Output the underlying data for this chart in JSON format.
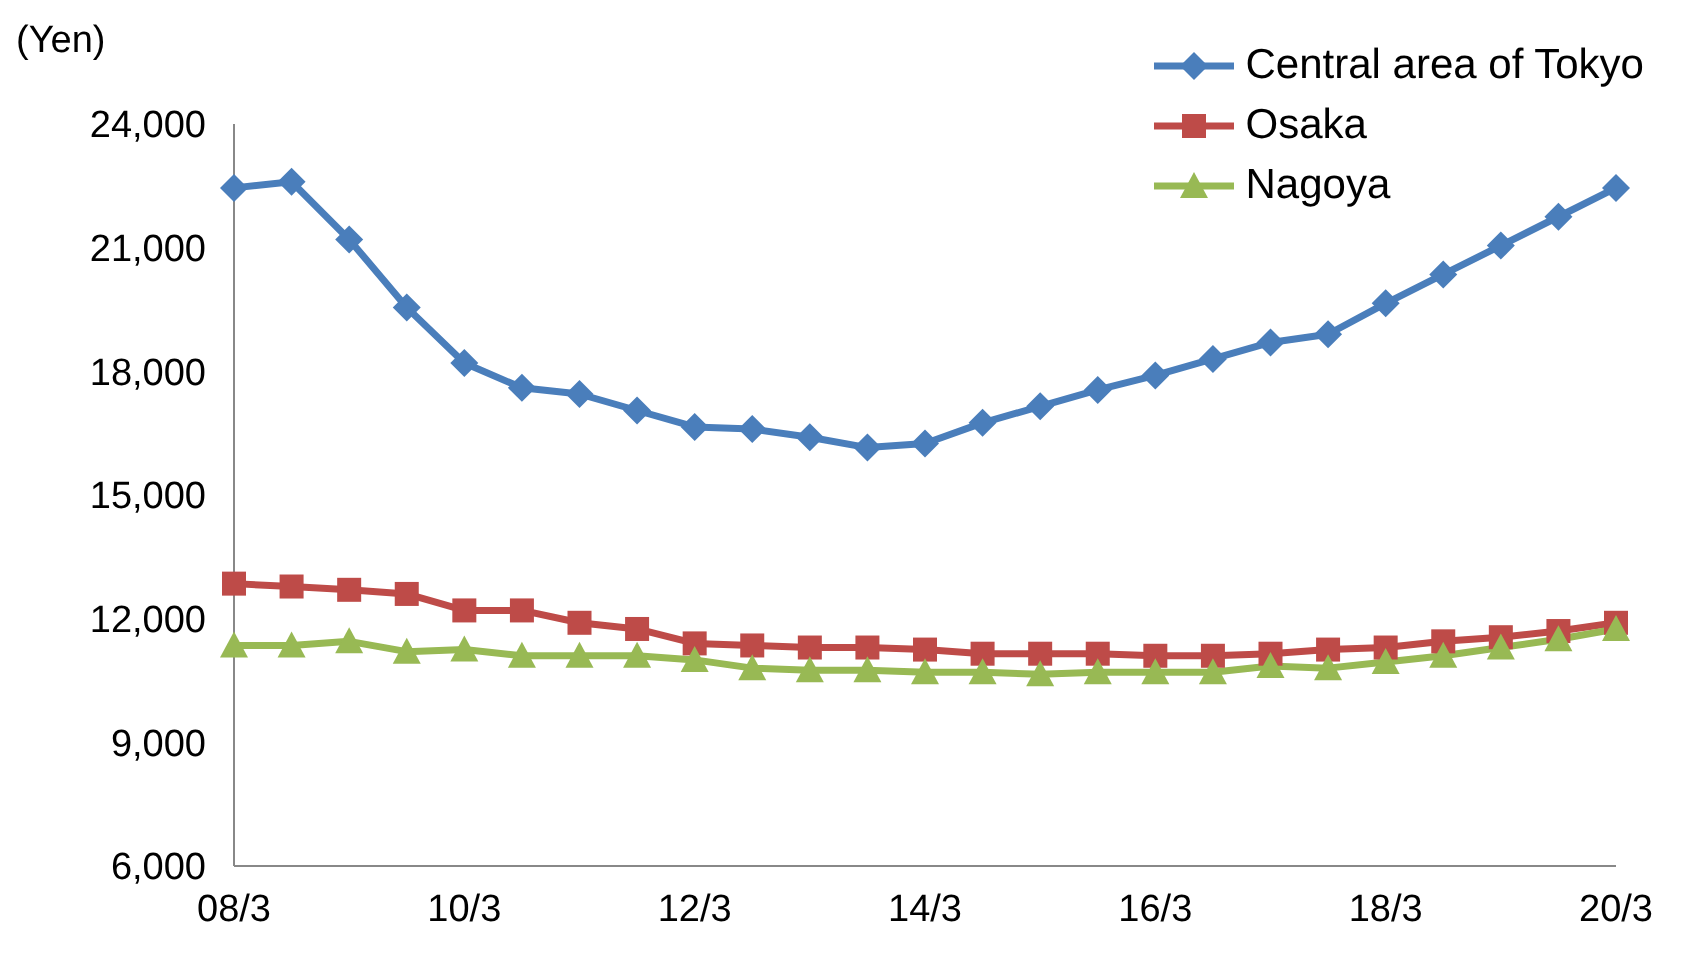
{
  "chart_data": {
    "type": "line",
    "ylabel": "(Yen)",
    "categories": [
      "08/3",
      null,
      null,
      null,
      "10/3",
      null,
      null,
      null,
      "12/3",
      null,
      null,
      null,
      "14/3",
      null,
      null,
      null,
      "16/3",
      null,
      null,
      null,
      "18/3",
      null,
      null,
      null,
      "20/3"
    ],
    "series": [
      {
        "name": "Central area of Tokyo",
        "color": "#4a7ebb",
        "marker": "diamond",
        "values": [
          22450,
          22600,
          21200,
          19550,
          18200,
          17600,
          17450,
          17050,
          16650,
          16600,
          16400,
          16150,
          16250,
          16750,
          17150,
          17550,
          17900,
          18300,
          18700,
          18900,
          19650,
          20350,
          21050,
          21750,
          22450
        ]
      },
      {
        "name": "Osaka",
        "color": "#be4b48",
        "marker": "square",
        "values": [
          12850,
          12780,
          12700,
          12600,
          12200,
          12200,
          11900,
          11750,
          11400,
          11350,
          11300,
          11300,
          11250,
          11150,
          11150,
          11150,
          11100,
          11100,
          11150,
          11250,
          11300,
          11450,
          11550,
          11700,
          11900
        ]
      },
      {
        "name": "Nagoya",
        "color": "#98b954",
        "marker": "triangle",
        "values": [
          11350,
          11350,
          11450,
          11200,
          11250,
          11100,
          11100,
          11100,
          11000,
          10800,
          10750,
          10750,
          10700,
          10700,
          10650,
          10700,
          10700,
          10700,
          10850,
          10800,
          10950,
          11100,
          11300,
          11500,
          11750
        ]
      }
    ],
    "ylim": [
      6000,
      24000
    ],
    "yticks": [
      {
        "value": 6000,
        "label": "6,000"
      },
      {
        "value": 9000,
        "label": "9,000"
      },
      {
        "value": 12000,
        "label": "12,000"
      },
      {
        "value": 15000,
        "label": "15,000"
      },
      {
        "value": 18000,
        "label": "18,000"
      },
      {
        "value": 21000,
        "label": "21,000"
      },
      {
        "value": 24000,
        "label": "24,000"
      }
    ],
    "grid": false,
    "legend": "top right",
    "line_style": "solid"
  }
}
